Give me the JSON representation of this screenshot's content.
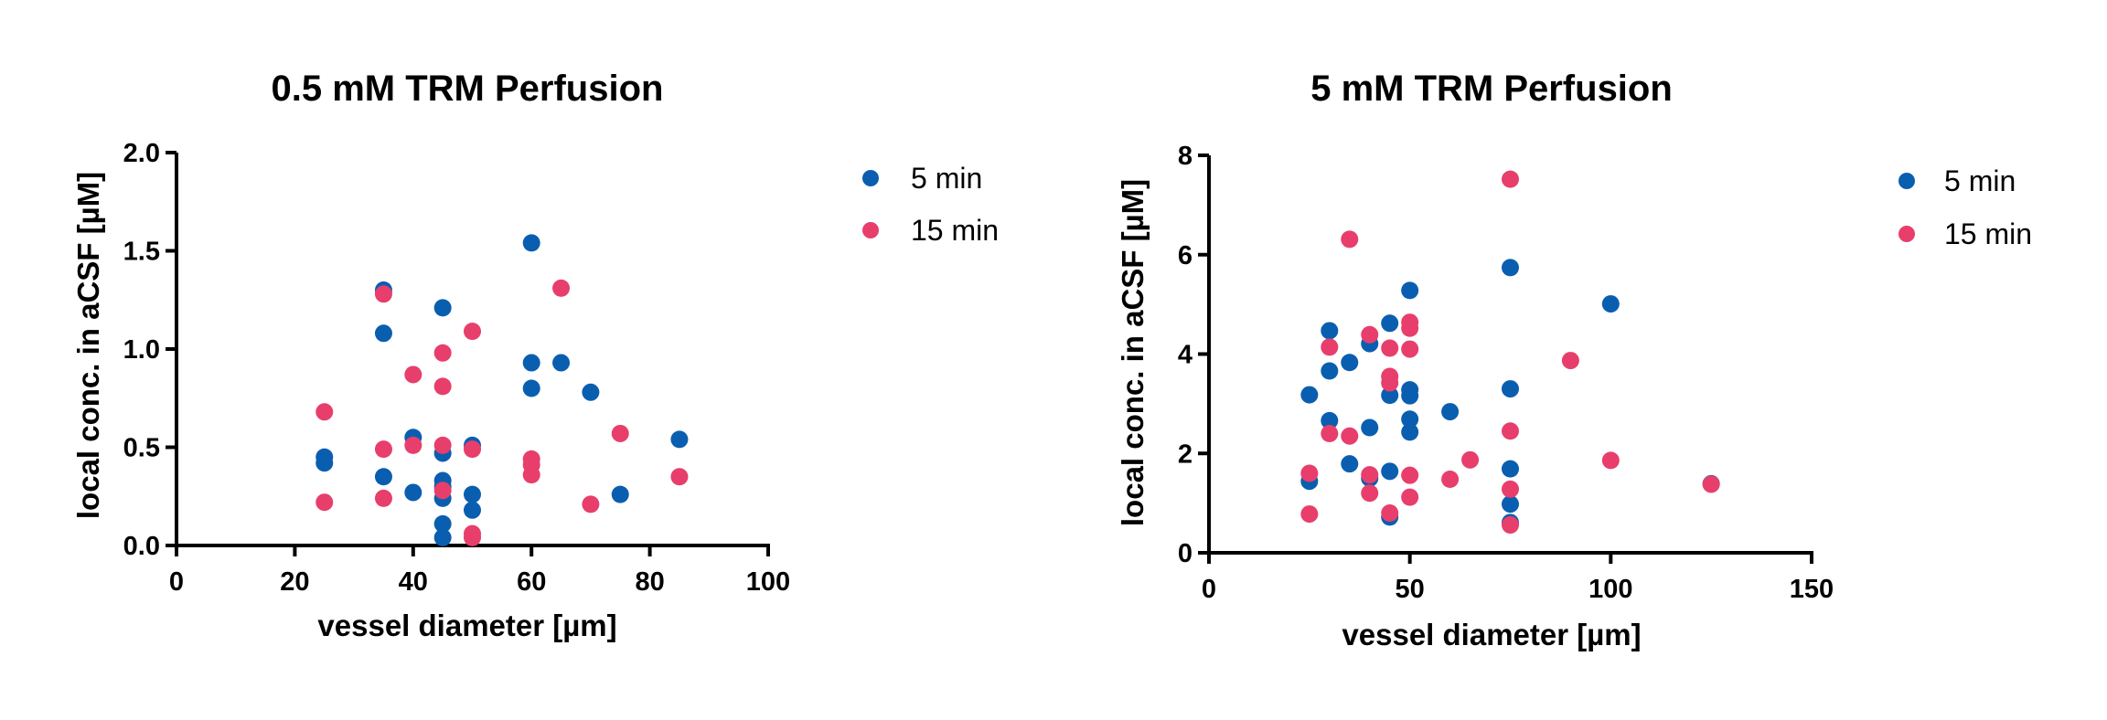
{
  "colors": {
    "5 min": "#0a5eb0",
    "15 min": "#e83e6c"
  },
  "chart_data": [
    {
      "type": "scatter",
      "title": "0.5 mM TRM Perfusion",
      "xlabel": "vessel diameter [µm]",
      "ylabel": "local conc. in aCSF [µM]",
      "xlim": [
        0,
        100
      ],
      "ylim": [
        0,
        2
      ],
      "xticks": [
        0,
        20,
        40,
        60,
        80,
        100
      ],
      "yticks": [
        0.0,
        0.5,
        1.0,
        1.5,
        2.0
      ],
      "xtick_labels": [
        "0",
        "20",
        "40",
        "60",
        "80",
        "100"
      ],
      "ytick_labels": [
        "0.0",
        "0.5",
        "1.0",
        "1.5",
        "2.0"
      ],
      "grid": false,
      "legend": "right",
      "series": [
        {
          "name": "5 min",
          "points": [
            [
              25,
              0.45
            ],
            [
              25,
              0.42
            ],
            [
              35,
              1.3
            ],
            [
              35,
              1.08
            ],
            [
              35,
              0.35
            ],
            [
              40,
              0.55
            ],
            [
              40,
              0.27
            ],
            [
              45,
              1.21
            ],
            [
              45,
              0.47
            ],
            [
              45,
              0.33
            ],
            [
              45,
              0.3
            ],
            [
              45,
              0.24
            ],
            [
              45,
              0.11
            ],
            [
              45,
              0.04
            ],
            [
              50,
              0.51
            ],
            [
              50,
              0.26
            ],
            [
              50,
              0.18
            ],
            [
              60,
              1.54
            ],
            [
              60,
              0.93
            ],
            [
              60,
              0.8
            ],
            [
              65,
              0.93
            ],
            [
              70,
              0.78
            ],
            [
              75,
              0.26
            ],
            [
              85,
              0.54
            ]
          ]
        },
        {
          "name": "15 min",
          "points": [
            [
              25,
              0.68
            ],
            [
              25,
              0.22
            ],
            [
              35,
              1.28
            ],
            [
              35,
              0.49
            ],
            [
              35,
              0.24
            ],
            [
              40,
              0.87
            ],
            [
              40,
              0.51
            ],
            [
              45,
              0.98
            ],
            [
              45,
              0.81
            ],
            [
              45,
              0.51
            ],
            [
              45,
              0.28
            ],
            [
              50,
              1.09
            ],
            [
              50,
              0.49
            ],
            [
              50,
              0.06
            ],
            [
              50,
              0.04
            ],
            [
              60,
              0.44
            ],
            [
              60,
              0.41
            ],
            [
              60,
              0.36
            ],
            [
              65,
              1.31
            ],
            [
              70,
              0.21
            ],
            [
              75,
              0.57
            ],
            [
              85,
              0.35
            ]
          ]
        }
      ]
    },
    {
      "type": "scatter",
      "title": "5 mM TRM Perfusion",
      "xlabel": "vessel diameter [µm]",
      "ylabel": "local conc. in aCSF [µM]",
      "xlim": [
        0,
        150
      ],
      "ylim": [
        0,
        8
      ],
      "xticks": [
        0,
        50,
        100,
        150
      ],
      "yticks": [
        0,
        2,
        4,
        6,
        8
      ],
      "xtick_labels": [
        "0",
        "50",
        "100",
        "150"
      ],
      "ytick_labels": [
        "0",
        "2",
        "4",
        "6",
        "8"
      ],
      "grid": false,
      "legend": "right",
      "series": [
        {
          "name": "5 min",
          "points": [
            [
              25,
              3.18
            ],
            [
              25,
              1.44
            ],
            [
              30,
              4.47
            ],
            [
              30,
              3.66
            ],
            [
              30,
              2.66
            ],
            [
              35,
              3.83
            ],
            [
              35,
              1.79
            ],
            [
              40,
              4.21
            ],
            [
              40,
              2.52
            ],
            [
              40,
              1.5
            ],
            [
              45,
              4.62
            ],
            [
              45,
              3.17
            ],
            [
              45,
              1.64
            ],
            [
              45,
              0.72
            ],
            [
              50,
              5.28
            ],
            [
              50,
              3.28
            ],
            [
              50,
              3.16
            ],
            [
              50,
              2.69
            ],
            [
              50,
              2.43
            ],
            [
              60,
              2.84
            ],
            [
              75,
              5.74
            ],
            [
              75,
              3.3
            ],
            [
              75,
              1.69
            ],
            [
              75,
              0.98
            ],
            [
              75,
              0.61
            ],
            [
              100,
              5.01
            ],
            [
              125,
              1.39
            ]
          ]
        },
        {
          "name": "15 min",
          "points": [
            [
              25,
              1.6
            ],
            [
              25,
              0.78
            ],
            [
              30,
              4.14
            ],
            [
              30,
              2.4
            ],
            [
              35,
              6.31
            ],
            [
              35,
              2.35
            ],
            [
              40,
              4.39
            ],
            [
              40,
              1.57
            ],
            [
              40,
              1.2
            ],
            [
              45,
              4.12
            ],
            [
              45,
              3.55
            ],
            [
              45,
              3.42
            ],
            [
              45,
              0.8
            ],
            [
              50,
              4.64
            ],
            [
              50,
              4.52
            ],
            [
              50,
              4.1
            ],
            [
              50,
              1.56
            ],
            [
              50,
              1.12
            ],
            [
              60,
              1.48
            ],
            [
              65,
              1.87
            ],
            [
              75,
              7.52
            ],
            [
              75,
              2.45
            ],
            [
              75,
              1.28
            ],
            [
              75,
              0.56
            ],
            [
              90,
              3.87
            ],
            [
              100,
              1.86
            ],
            [
              125,
              1.38
            ]
          ]
        }
      ]
    }
  ]
}
